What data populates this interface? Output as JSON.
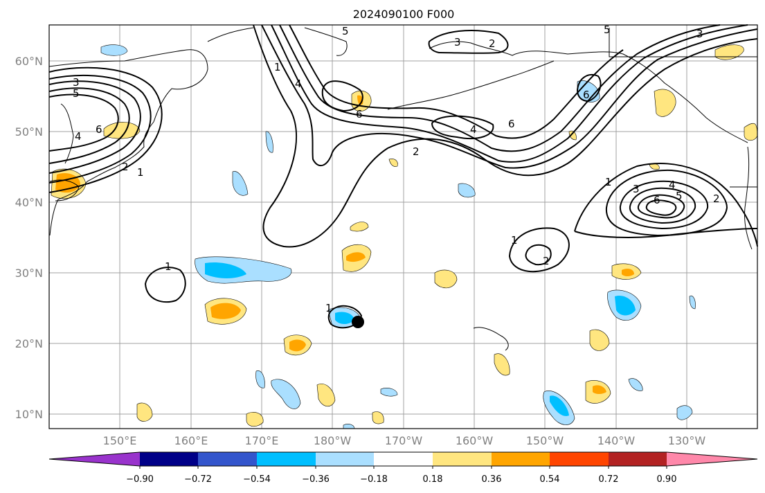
{
  "title": "2024090100 F000",
  "map": {
    "lat_labels": [
      "60°N",
      "50°N",
      "40°N",
      "30°N",
      "20°N",
      "10°N"
    ],
    "lon_labels": [
      "150°E",
      "160°E",
      "170°E",
      "180°W",
      "170°W",
      "160°W",
      "150°W",
      "140°W",
      "130°W"
    ],
    "contour_labels": {
      "nw_3": "3",
      "nw_5": "5",
      "nw_6": "6",
      "nw_4": "4",
      "nw_2": "2",
      "nw_1": "1",
      "n_5": "5",
      "n_4": "4",
      "n_1": "1",
      "n_6": "6",
      "n_3": "3",
      "n_2": "2",
      "c_2": "2",
      "c_4": "4",
      "c_6": "6",
      "ak_6": "6",
      "ne_3": "3",
      "ne_5": "5",
      "e_1": "1",
      "e_3": "3",
      "e_4": "4",
      "e_6": "6",
      "e_5": "5",
      "e_2": "2",
      "mid_1": "1",
      "mid_2": "2",
      "w_1": "1",
      "hi_1": "1"
    }
  },
  "colorbar": {
    "colors": [
      "#9933cc",
      "#000088",
      "#3355cc",
      "#00bfff",
      "#aadfff",
      "#ffffff",
      "#ffe680",
      "#ffa500",
      "#ff4500",
      "#b22222",
      "#ff88aa"
    ],
    "tick_labels": [
      "−0.90",
      "−0.72",
      "−0.54",
      "−0.36",
      "−0.18",
      "0.18",
      "0.36",
      "0.54",
      "0.72",
      "0.90"
    ]
  },
  "marker": {
    "name": "storm-center-marker",
    "color": "#000000"
  }
}
